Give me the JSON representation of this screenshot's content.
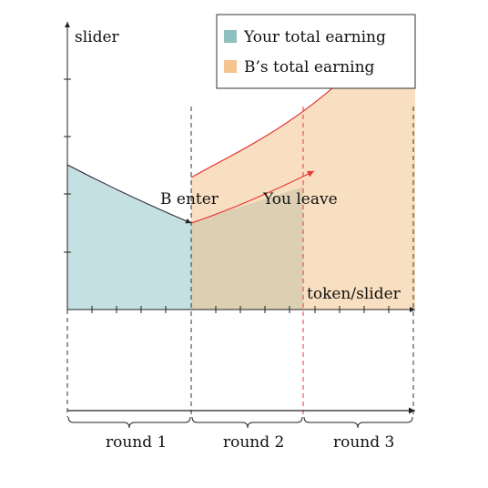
{
  "axes": {
    "y_label": "slider",
    "x_label": "token/slider"
  },
  "legend": {
    "placement": "top-right",
    "items": [
      {
        "label": "Your total earning",
        "color": "#8fbfbf"
      },
      {
        "label": "B’s total earning",
        "color": "#f6c48f"
      }
    ]
  },
  "annotations": {
    "b_enter": "B enter",
    "you_leave": "You leave"
  },
  "rounds": [
    "round 1",
    "round 2",
    "round 3"
  ],
  "colors": {
    "your_fill": "#c5e0e2",
    "b_fill": "#f9dfc1",
    "overlap_fill": "#dccfb2",
    "red": "#e53935",
    "axis": "#222222"
  }
}
